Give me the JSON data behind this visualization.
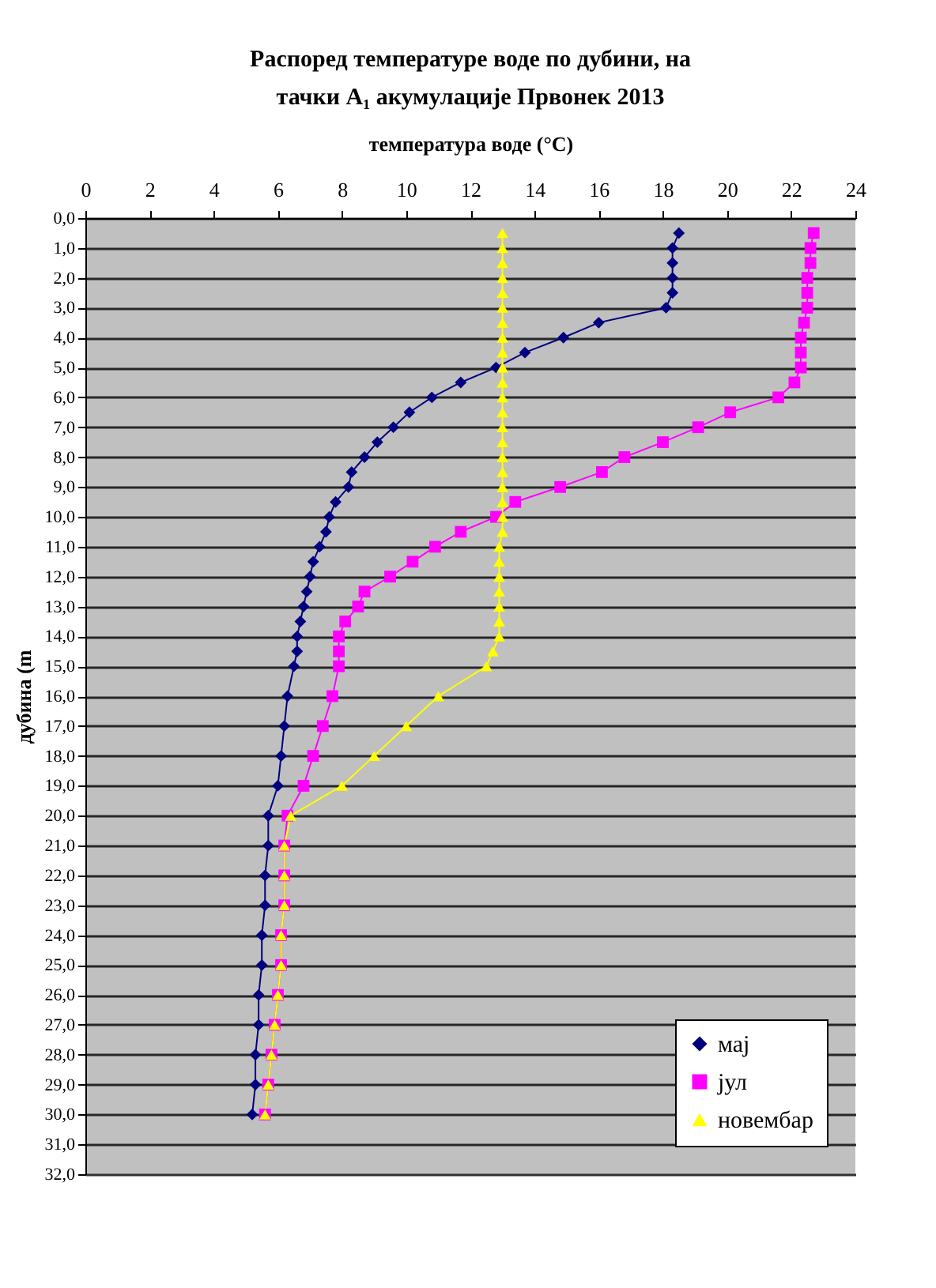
{
  "chart_data": {
    "type": "line",
    "title": "Распоред температуре воде по дубини, на\nтачки A₁ акумулације Првонек 2013",
    "xlabel": "температура воде (°C)",
    "ylabel": "дубина (m",
    "xlim": [
      0,
      24
    ],
    "xticks": [
      0,
      2,
      4,
      6,
      8,
      10,
      12,
      14,
      16,
      18,
      20,
      22,
      24
    ],
    "ylim": [
      32,
      0
    ],
    "yticks": [
      {
        "value": 0,
        "label": "0,0"
      },
      {
        "value": 1,
        "label": "1,0"
      },
      {
        "value": 2,
        "label": "2,0"
      },
      {
        "value": 3,
        "label": "3,0"
      },
      {
        "value": 4,
        "label": "4,0"
      },
      {
        "value": 5,
        "label": "5,0"
      },
      {
        "value": 6,
        "label": "6,0"
      },
      {
        "value": 7,
        "label": "7,0"
      },
      {
        "value": 8,
        "label": "8,0"
      },
      {
        "value": 9,
        "label": "9,0"
      },
      {
        "value": 10,
        "label": "10,0"
      },
      {
        "value": 11,
        "label": "11,0"
      },
      {
        "value": 12,
        "label": "12,0"
      },
      {
        "value": 13,
        "label": "13,0"
      },
      {
        "value": 14,
        "label": "14,0"
      },
      {
        "value": 15,
        "label": "15,0"
      },
      {
        "value": 16,
        "label": "16,0"
      },
      {
        "value": 17,
        "label": "17,0"
      },
      {
        "value": 18,
        "label": "18,0"
      },
      {
        "value": 19,
        "label": "19,0"
      },
      {
        "value": 20,
        "label": "20,0"
      },
      {
        "value": 21,
        "label": "21,0"
      },
      {
        "value": 22,
        "label": "22,0"
      },
      {
        "value": 23,
        "label": "23,0"
      },
      {
        "value": 24,
        "label": "24,0"
      },
      {
        "value": 25,
        "label": "25,0"
      },
      {
        "value": 26,
        "label": "26,0"
      },
      {
        "value": 27,
        "label": "27,0"
      },
      {
        "value": 28,
        "label": "28,0"
      },
      {
        "value": 29,
        "label": "29,0"
      },
      {
        "value": 30,
        "label": "30,0"
      },
      {
        "value": 31,
        "label": "31,0"
      },
      {
        "value": 32,
        "label": "32,0"
      }
    ],
    "grid": "y",
    "legend": "bottom right",
    "line_style": "solid",
    "series": [
      {
        "name": "мај",
        "color": "#000080",
        "marker": "diamond",
        "x": [
          18.5,
          18.3,
          18.3,
          18.3,
          18.3,
          18.1,
          16.0,
          14.9,
          13.7,
          12.8,
          11.7,
          10.8,
          10.1,
          9.6,
          9.1,
          8.7,
          8.3,
          8.2,
          7.8,
          7.6,
          7.5,
          7.3,
          7.1,
          7.0,
          6.9,
          6.8,
          6.7,
          6.6,
          6.6,
          6.5,
          6.3,
          6.2,
          6.1,
          6.0,
          5.7,
          5.7,
          5.6,
          5.6,
          5.5,
          5.5,
          5.4,
          5.4,
          5.3,
          5.3,
          5.2
        ],
        "values": [
          0.5,
          1,
          1.5,
          2,
          2.5,
          3,
          3.5,
          4,
          4.5,
          5,
          5.5,
          6,
          6.5,
          7,
          7.5,
          8,
          8.5,
          9,
          9.5,
          10,
          10.5,
          11,
          11.5,
          12,
          12.5,
          13,
          13.5,
          14,
          14.5,
          15,
          16,
          17,
          18,
          19,
          20,
          21,
          22,
          23,
          24,
          25,
          26,
          27,
          28,
          29,
          30
        ]
      },
      {
        "name": "јул",
        "color": "#ff00ff",
        "marker": "square",
        "x": [
          22.7,
          22.6,
          22.6,
          22.5,
          22.5,
          22.5,
          22.4,
          22.3,
          22.3,
          22.3,
          22.1,
          21.6,
          20.1,
          19.1,
          18.0,
          16.8,
          16.1,
          14.8,
          13.4,
          12.8,
          11.7,
          10.9,
          10.2,
          9.5,
          8.7,
          8.5,
          8.1,
          7.9,
          7.9,
          7.9,
          7.7,
          7.4,
          7.1,
          6.8,
          6.3,
          6.2,
          6.2,
          6.2,
          6.1,
          6.1,
          6.0,
          5.9,
          5.8,
          5.7,
          5.6
        ],
        "values": [
          0.5,
          1,
          1.5,
          2,
          2.5,
          3,
          3.5,
          4,
          4.5,
          5,
          5.5,
          6,
          6.5,
          7,
          7.5,
          8,
          8.5,
          9,
          9.5,
          10,
          10.5,
          11,
          11.5,
          12,
          12.5,
          13,
          13.5,
          14,
          14.5,
          15,
          16,
          17,
          18,
          19,
          20,
          21,
          22,
          23,
          24,
          25,
          26,
          27,
          28,
          29,
          30
        ]
      },
      {
        "name": "новембар",
        "color": "#ffff00",
        "marker": "triangle",
        "x": [
          13.0,
          13.0,
          13.0,
          13.0,
          13.0,
          13.0,
          13.0,
          13.0,
          13.0,
          13.0,
          13.0,
          13.0,
          13.0,
          13.0,
          13.0,
          13.0,
          13.0,
          13.0,
          13.0,
          13.0,
          13.0,
          12.9,
          12.9,
          12.9,
          12.9,
          12.9,
          12.9,
          12.9,
          12.7,
          12.5,
          11.0,
          10.0,
          9.0,
          8.0,
          6.4,
          6.2,
          6.2,
          6.2,
          6.1,
          6.1,
          6.0,
          5.9,
          5.8,
          5.7,
          5.6
        ],
        "values": [
          0.5,
          1,
          1.5,
          2,
          2.5,
          3,
          3.5,
          4,
          4.5,
          5,
          5.5,
          6,
          6.5,
          7,
          7.5,
          8,
          8.5,
          9,
          9.5,
          10,
          10.5,
          11,
          11.5,
          12,
          12.5,
          13,
          13.5,
          14,
          14.5,
          15,
          16,
          17,
          18,
          19,
          20,
          21,
          22,
          23,
          24,
          25,
          26,
          27,
          28,
          29,
          30
        ]
      }
    ]
  }
}
